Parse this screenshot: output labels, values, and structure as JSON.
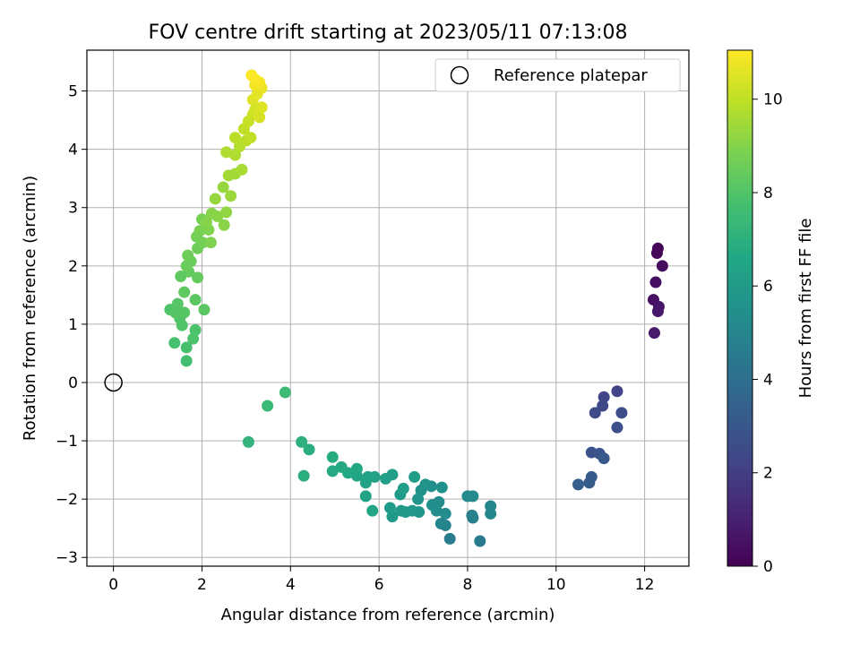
{
  "chart_data": {
    "type": "scatter",
    "title": "FOV centre drift starting at 2023/05/11 07:13:08",
    "xlabel": "Angular distance from reference (arcmin)",
    "ylabel": "Rotation from reference (arcmin)",
    "xlim": [
      -0.6,
      13.0
    ],
    "ylim": [
      -3.15,
      5.7
    ],
    "xticks": [
      0,
      2,
      4,
      6,
      8,
      10,
      12
    ],
    "yticks": [
      -3,
      -2,
      -1,
      0,
      1,
      2,
      3,
      4,
      5
    ],
    "grid": true,
    "legend": {
      "placement": "top-right",
      "entries": [
        {
          "label": "Reference platepar",
          "marker": "open-circle"
        }
      ]
    },
    "reference_point": {
      "x": 0,
      "y": 0
    },
    "colorbar": {
      "label": "Hours from first FF file",
      "colormap": "viridis",
      "range": [
        0,
        11.05
      ],
      "ticks": [
        0,
        2,
        4,
        6,
        8,
        10
      ]
    },
    "points": [
      {
        "x": 12.3,
        "y": 2.3,
        "t": 0.1
      },
      {
        "x": 12.28,
        "y": 2.22,
        "t": 0.2
      },
      {
        "x": 12.4,
        "y": 2.0,
        "t": 0.3
      },
      {
        "x": 12.25,
        "y": 1.72,
        "t": 0.4
      },
      {
        "x": 12.2,
        "y": 1.42,
        "t": 0.5
      },
      {
        "x": 12.32,
        "y": 1.3,
        "t": 0.6
      },
      {
        "x": 12.3,
        "y": 1.22,
        "t": 0.7
      },
      {
        "x": 12.22,
        "y": 0.85,
        "t": 0.8
      },
      {
        "x": 11.38,
        "y": -0.15,
        "t": 2.2
      },
      {
        "x": 11.08,
        "y": -0.25,
        "t": 2.3
      },
      {
        "x": 11.05,
        "y": -0.4,
        "t": 2.4
      },
      {
        "x": 10.88,
        "y": -0.52,
        "t": 2.5
      },
      {
        "x": 11.48,
        "y": -0.52,
        "t": 2.6
      },
      {
        "x": 11.38,
        "y": -0.77,
        "t": 2.7
      },
      {
        "x": 10.8,
        "y": -1.2,
        "t": 2.8
      },
      {
        "x": 10.98,
        "y": -1.22,
        "t": 2.9
      },
      {
        "x": 11.08,
        "y": -1.3,
        "t": 3.0
      },
      {
        "x": 10.8,
        "y": -1.62,
        "t": 3.1
      },
      {
        "x": 10.75,
        "y": -1.72,
        "t": 3.2
      },
      {
        "x": 10.5,
        "y": -1.75,
        "t": 3.3
      },
      {
        "x": 8.28,
        "y": -2.72,
        "t": 4.5
      },
      {
        "x": 7.6,
        "y": -2.68,
        "t": 4.6
      },
      {
        "x": 8.12,
        "y": -2.32,
        "t": 4.7
      },
      {
        "x": 8.1,
        "y": -2.28,
        "t": 4.8
      },
      {
        "x": 7.5,
        "y": -2.45,
        "t": 4.9
      },
      {
        "x": 7.4,
        "y": -2.42,
        "t": 5.0
      },
      {
        "x": 8.52,
        "y": -2.12,
        "t": 5.0
      },
      {
        "x": 8.52,
        "y": -2.25,
        "t": 5.1
      },
      {
        "x": 8.0,
        "y": -1.95,
        "t": 5.2
      },
      {
        "x": 8.12,
        "y": -1.95,
        "t": 5.2
      },
      {
        "x": 7.5,
        "y": -2.25,
        "t": 5.3
      },
      {
        "x": 7.3,
        "y": -2.2,
        "t": 5.3
      },
      {
        "x": 7.2,
        "y": -2.1,
        "t": 5.4
      },
      {
        "x": 7.35,
        "y": -2.05,
        "t": 5.4
      },
      {
        "x": 7.42,
        "y": -1.8,
        "t": 5.5
      },
      {
        "x": 7.18,
        "y": -1.78,
        "t": 5.5
      },
      {
        "x": 7.05,
        "y": -1.75,
        "t": 5.6
      },
      {
        "x": 6.95,
        "y": -1.85,
        "t": 5.6
      },
      {
        "x": 6.88,
        "y": -2.0,
        "t": 5.7
      },
      {
        "x": 6.9,
        "y": -2.22,
        "t": 5.7
      },
      {
        "x": 6.75,
        "y": -2.2,
        "t": 5.8
      },
      {
        "x": 6.6,
        "y": -2.22,
        "t": 5.8
      },
      {
        "x": 6.5,
        "y": -2.2,
        "t": 5.9
      },
      {
        "x": 6.3,
        "y": -2.3,
        "t": 5.9
      },
      {
        "x": 6.25,
        "y": -2.15,
        "t": 6.0
      },
      {
        "x": 6.48,
        "y": -1.92,
        "t": 6.0
      },
      {
        "x": 6.55,
        "y": -1.82,
        "t": 6.1
      },
      {
        "x": 6.8,
        "y": -1.62,
        "t": 6.1
      },
      {
        "x": 6.3,
        "y": -1.58,
        "t": 6.2
      },
      {
        "x": 6.15,
        "y": -1.65,
        "t": 6.2
      },
      {
        "x": 5.9,
        "y": -1.62,
        "t": 6.3
      },
      {
        "x": 5.75,
        "y": -1.62,
        "t": 6.3
      },
      {
        "x": 5.7,
        "y": -1.72,
        "t": 6.4
      },
      {
        "x": 5.7,
        "y": -1.95,
        "t": 6.4
      },
      {
        "x": 5.85,
        "y": -2.2,
        "t": 6.5
      },
      {
        "x": 5.5,
        "y": -1.6,
        "t": 6.5
      },
      {
        "x": 5.5,
        "y": -1.48,
        "t": 6.6
      },
      {
        "x": 5.3,
        "y": -1.55,
        "t": 6.6
      },
      {
        "x": 5.15,
        "y": -1.45,
        "t": 6.7
      },
      {
        "x": 4.95,
        "y": -1.52,
        "t": 6.7
      },
      {
        "x": 4.95,
        "y": -1.28,
        "t": 6.8
      },
      {
        "x": 4.3,
        "y": -1.6,
        "t": 6.9
      },
      {
        "x": 4.42,
        "y": -1.15,
        "t": 6.9
      },
      {
        "x": 4.25,
        "y": -1.02,
        "t": 7.0
      },
      {
        "x": 3.05,
        "y": -1.02,
        "t": 7.2
      },
      {
        "x": 3.48,
        "y": -0.4,
        "t": 7.4
      },
      {
        "x": 3.88,
        "y": -0.17,
        "t": 7.5
      },
      {
        "x": 1.65,
        "y": 0.37,
        "t": 7.7
      },
      {
        "x": 1.38,
        "y": 0.68,
        "t": 7.8
      },
      {
        "x": 1.65,
        "y": 0.6,
        "t": 7.8
      },
      {
        "x": 1.8,
        "y": 0.75,
        "t": 7.9
      },
      {
        "x": 1.85,
        "y": 0.9,
        "t": 7.9
      },
      {
        "x": 1.55,
        "y": 0.98,
        "t": 8.0
      },
      {
        "x": 1.5,
        "y": 1.1,
        "t": 8.0
      },
      {
        "x": 1.28,
        "y": 1.25,
        "t": 8.0
      },
      {
        "x": 1.4,
        "y": 1.2,
        "t": 8.1
      },
      {
        "x": 1.45,
        "y": 1.35,
        "t": 8.1
      },
      {
        "x": 1.6,
        "y": 1.2,
        "t": 8.1
      },
      {
        "x": 2.05,
        "y": 1.25,
        "t": 8.2
      },
      {
        "x": 1.85,
        "y": 1.42,
        "t": 8.2
      },
      {
        "x": 1.6,
        "y": 1.55,
        "t": 8.3
      },
      {
        "x": 1.52,
        "y": 1.82,
        "t": 8.3
      },
      {
        "x": 1.7,
        "y": 1.9,
        "t": 8.4
      },
      {
        "x": 1.9,
        "y": 1.8,
        "t": 8.4
      },
      {
        "x": 1.65,
        "y": 2.0,
        "t": 8.5
      },
      {
        "x": 1.75,
        "y": 2.08,
        "t": 8.5
      },
      {
        "x": 1.68,
        "y": 2.18,
        "t": 8.6
      },
      {
        "x": 1.9,
        "y": 2.3,
        "t": 8.6
      },
      {
        "x": 1.88,
        "y": 2.5,
        "t": 8.7
      },
      {
        "x": 2.02,
        "y": 2.4,
        "t": 8.7
      },
      {
        "x": 1.95,
        "y": 2.6,
        "t": 8.8
      },
      {
        "x": 2.0,
        "y": 2.8,
        "t": 8.8
      },
      {
        "x": 2.2,
        "y": 2.4,
        "t": 8.9
      },
      {
        "x": 2.15,
        "y": 2.62,
        "t": 8.9
      },
      {
        "x": 2.1,
        "y": 2.75,
        "t": 9.0
      },
      {
        "x": 2.22,
        "y": 2.9,
        "t": 9.0
      },
      {
        "x": 2.35,
        "y": 2.85,
        "t": 9.1
      },
      {
        "x": 2.5,
        "y": 2.7,
        "t": 9.1
      },
      {
        "x": 2.55,
        "y": 2.92,
        "t": 9.2
      },
      {
        "x": 2.3,
        "y": 3.15,
        "t": 9.3
      },
      {
        "x": 2.48,
        "y": 3.35,
        "t": 9.3
      },
      {
        "x": 2.65,
        "y": 3.2,
        "t": 9.4
      },
      {
        "x": 2.6,
        "y": 3.55,
        "t": 9.5
      },
      {
        "x": 2.75,
        "y": 3.58,
        "t": 9.5
      },
      {
        "x": 2.9,
        "y": 3.65,
        "t": 9.6
      },
      {
        "x": 2.55,
        "y": 3.95,
        "t": 9.7
      },
      {
        "x": 2.75,
        "y": 3.9,
        "t": 9.7
      },
      {
        "x": 2.85,
        "y": 4.05,
        "t": 9.8
      },
      {
        "x": 2.75,
        "y": 4.2,
        "t": 9.9
      },
      {
        "x": 3.0,
        "y": 4.15,
        "t": 9.9
      },
      {
        "x": 2.95,
        "y": 4.35,
        "t": 10.0
      },
      {
        "x": 3.1,
        "y": 4.2,
        "t": 10.0
      },
      {
        "x": 3.05,
        "y": 4.48,
        "t": 10.1
      },
      {
        "x": 3.15,
        "y": 4.6,
        "t": 10.2
      },
      {
        "x": 3.2,
        "y": 4.68,
        "t": 10.3
      },
      {
        "x": 3.3,
        "y": 4.55,
        "t": 10.4
      },
      {
        "x": 3.35,
        "y": 4.72,
        "t": 10.5
      },
      {
        "x": 3.15,
        "y": 4.85,
        "t": 10.5
      },
      {
        "x": 3.25,
        "y": 4.95,
        "t": 10.6
      },
      {
        "x": 3.35,
        "y": 5.05,
        "t": 10.7
      },
      {
        "x": 3.2,
        "y": 5.1,
        "t": 10.8
      },
      {
        "x": 3.3,
        "y": 5.15,
        "t": 10.9
      },
      {
        "x": 3.12,
        "y": 5.27,
        "t": 11.0
      },
      {
        "x": 3.2,
        "y": 5.2,
        "t": 11.0
      }
    ]
  }
}
